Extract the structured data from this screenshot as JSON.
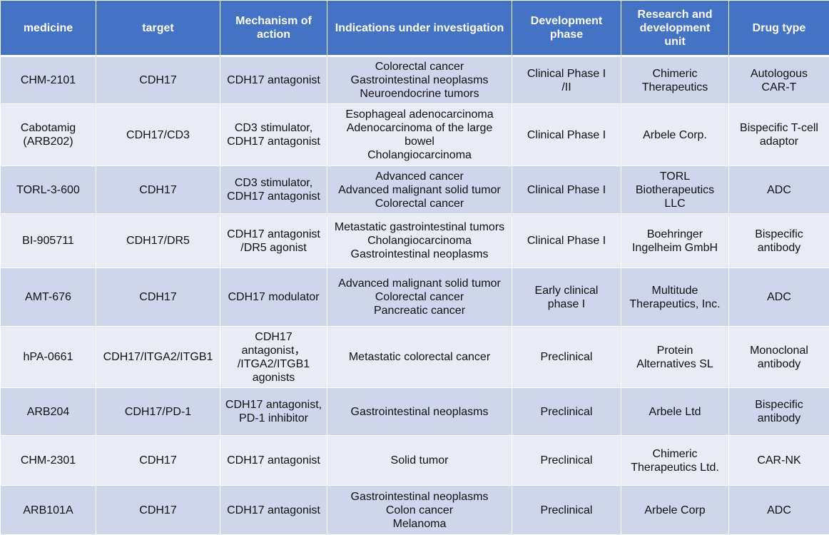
{
  "table": {
    "headers": [
      [
        "medicine"
      ],
      [
        "target"
      ],
      [
        "Mechanism of",
        "action"
      ],
      [
        "Indications under investigation"
      ],
      [
        "Development",
        "phase"
      ],
      [
        "Research and",
        "development",
        "unit"
      ],
      [
        "Drug type"
      ]
    ],
    "rows": [
      [
        [
          "CHM-2101"
        ],
        [
          "CDH17"
        ],
        [
          "CDH17 antagonist"
        ],
        [
          "Colorectal cancer",
          "Gastrointestinal neoplasms",
          "Neuroendocrine tumors"
        ],
        [
          "Clinical Phase I",
          "/II"
        ],
        [
          "Chimeric",
          "Therapeutics"
        ],
        [
          "Autologous",
          "CAR-T"
        ]
      ],
      [
        [
          "Cabotamig",
          "(ARB202)"
        ],
        [
          "CDH17/CD3"
        ],
        [
          "CD3 stimulator,",
          "CDH17 antagonist"
        ],
        [
          "Esophageal adenocarcinoma",
          "Adenocarcinoma of the large",
          "bowel",
          "Cholangiocarcinoma"
        ],
        [
          "Clinical Phase I"
        ],
        [
          "Arbele Corp."
        ],
        [
          "Bispecific T-cell",
          "adaptor"
        ]
      ],
      [
        [
          "TORL-3-600"
        ],
        [
          "CDH17"
        ],
        [
          "CD3 stimulator,",
          "CDH17 antagonist"
        ],
        [
          "Advanced cancer",
          "Advanced malignant solid tumor",
          "Colorectal cancer"
        ],
        [
          "Clinical Phase I"
        ],
        [
          "TORL",
          "Biotherapeutics",
          "LLC"
        ],
        [
          "ADC"
        ]
      ],
      [
        [
          "BI-905711"
        ],
        [
          "CDH17/DR5"
        ],
        [
          "CDH17 antagonist",
          "/DR5 agonist"
        ],
        [
          "Metastatic gastrointestinal tumors",
          "Cholangiocarcinoma",
          "Gastrointestinal neoplasms"
        ],
        [
          "Clinical Phase I"
        ],
        [
          "Boehringer",
          "Ingelheim GmbH"
        ],
        [
          "Bispecific",
          "antibody"
        ]
      ],
      [
        [
          "AMT-676"
        ],
        [
          "CDH17"
        ],
        [
          "CDH17 modulator"
        ],
        [
          "Advanced malignant solid tumor",
          "Colorectal cancer",
          "Pancreatic cancer"
        ],
        [
          "Early clinical",
          "phase I"
        ],
        [
          "Multitude",
          "Therapeutics, Inc."
        ],
        [
          "ADC"
        ]
      ],
      [
        [
          "hPA-0661"
        ],
        [
          "CDH17/ITGA2/ITGB1"
        ],
        [
          "CDH17 antagonist，",
          "/ITGA2/ITGB1",
          "agonists"
        ],
        [
          "Metastatic colorectal cancer"
        ],
        [
          "Preclinical"
        ],
        [
          "Protein",
          "Alternatives SL"
        ],
        [
          "Monoclonal",
          "antibody"
        ]
      ],
      [
        [
          "ARB204"
        ],
        [
          "CDH17/PD-1"
        ],
        [
          "CDH17 antagonist,",
          "PD-1 inhibitor"
        ],
        [
          "Gastrointestinal neoplasms"
        ],
        [
          "Preclinical"
        ],
        [
          "Arbele Ltd"
        ],
        [
          "Bispecific",
          "antibody"
        ]
      ],
      [
        [
          "CHM-2301"
        ],
        [
          "CDH17"
        ],
        [
          "CDH17 antagonist"
        ],
        [
          "Solid tumor"
        ],
        [
          "Preclinical"
        ],
        [
          "Chimeric",
          "Therapeutics Ltd."
        ],
        [
          "CAR-NK"
        ]
      ],
      [
        [
          "ARB101A"
        ],
        [
          "CDH17"
        ],
        [
          "CDH17 antagonist"
        ],
        [
          "Gastrointestinal neoplasms",
          "Colon cancer",
          "Melanoma"
        ],
        [
          "Preclinical"
        ],
        [
          "Arbele Corp"
        ],
        [
          "ADC"
        ]
      ]
    ]
  },
  "colors": {
    "header_bg": "#4472c4",
    "row_band_dark": "#cfd5ea",
    "row_band_light": "#e9ebf5"
  }
}
